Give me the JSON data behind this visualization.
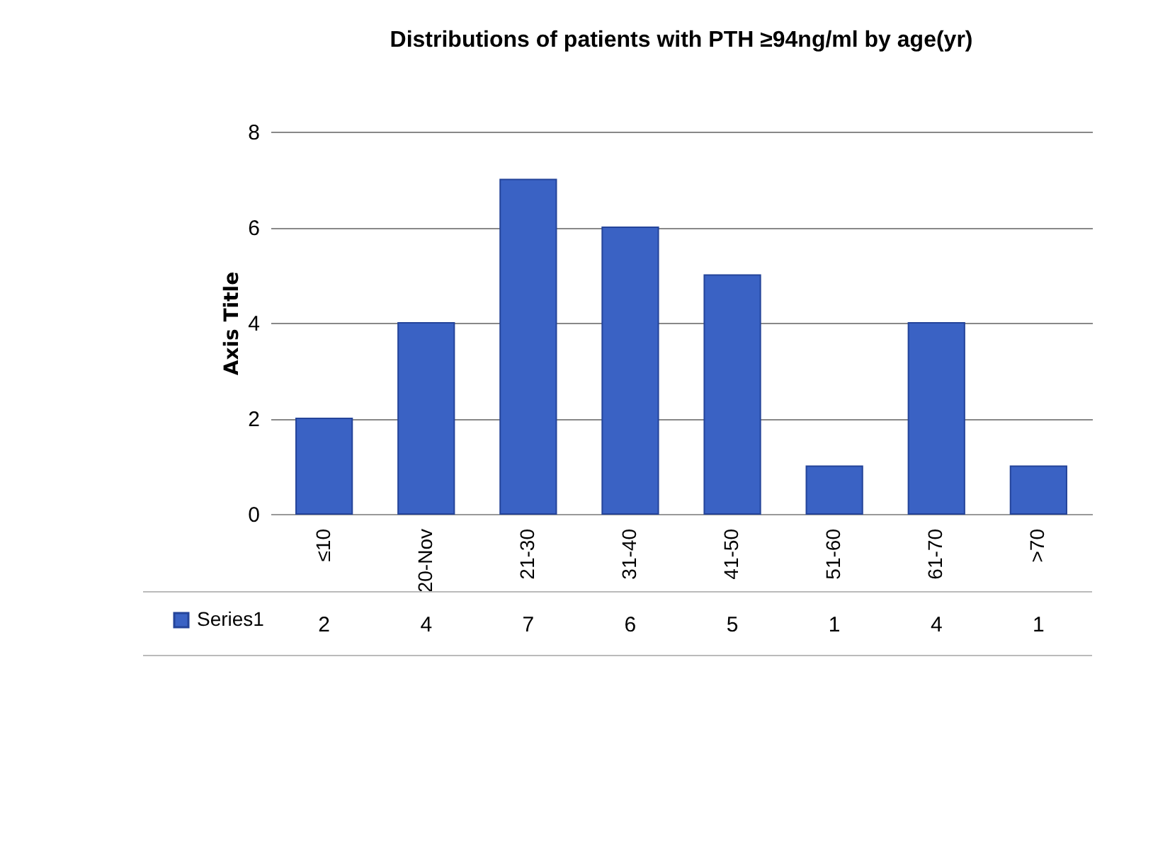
{
  "chart_data": {
    "type": "bar",
    "title": "Distributions of patients with PTH ≥94ng/ml by age(yr)",
    "ylabel": "Axis Title",
    "categories": [
      "≤10",
      "20-Nov",
      "21-30",
      "31-40",
      "41-50",
      "51-60",
      "61-70",
      ">70"
    ],
    "series": [
      {
        "name": "Series1",
        "color": "#3a62c4",
        "values": [
          2,
          4,
          7,
          6,
          5,
          1,
          4,
          1
        ]
      }
    ],
    "ylim": [
      0,
      8
    ],
    "yticks": [
      0,
      2,
      4,
      6,
      8
    ],
    "grid": "y",
    "data_labels": true,
    "legend": "bottom left"
  }
}
